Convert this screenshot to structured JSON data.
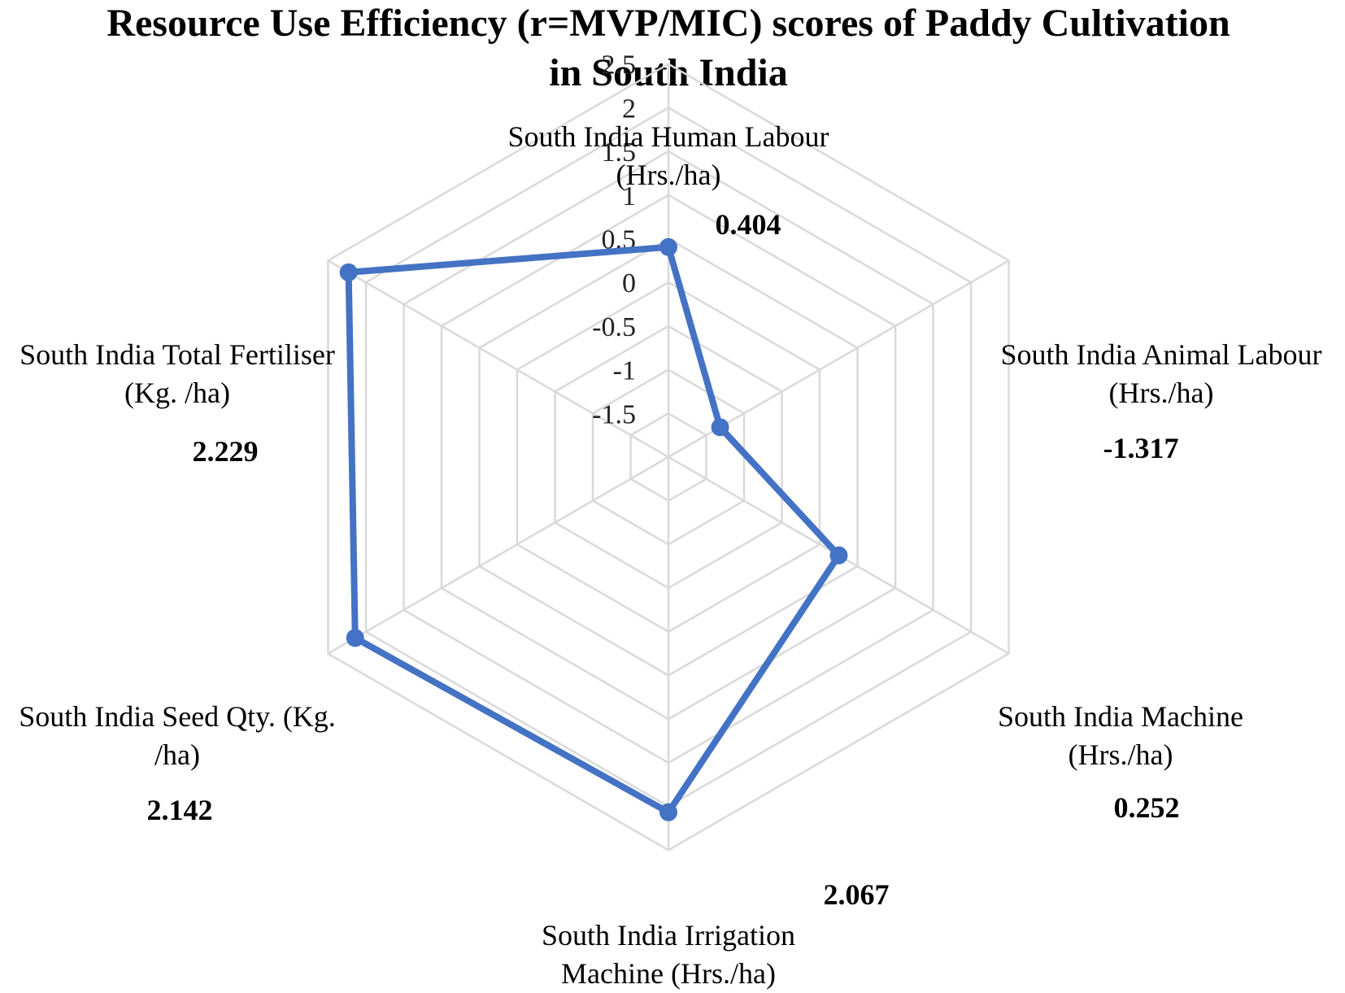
{
  "chart_data": {
    "type": "radar",
    "title_lines": [
      "Resource Use Efficiency (r=MVP/MIC) scores of Paddy Cultivation",
      "in South India"
    ],
    "categories": [
      "South India Human Labour (Hrs./ha)",
      "South India Animal Labour (Hrs./ha)",
      "South India Machine (Hrs./ha)",
      "South India Irrigation Machine (Hrs./ha)",
      "South India Seed Qty. (Kg. /ha)",
      "South India Total Fertiliser (Kg. /ha)"
    ],
    "category_label_lines": [
      [
        "South India Human Labour",
        "(Hrs./ha)"
      ],
      [
        "South India Animal Labour",
        "(Hrs./ha)"
      ],
      [
        "South India Machine",
        "(Hrs./ha)"
      ],
      [
        "South India Irrigation",
        "Machine (Hrs./ha)"
      ],
      [
        "South India Seed Qty. (Kg.",
        "/ha)"
      ],
      [
        "South India Total Fertiliser",
        "(Kg. /ha)"
      ]
    ],
    "series": [
      {
        "values": [
          0.404,
          -1.317,
          0.252,
          2.067,
          2.142,
          2.229
        ],
        "color": "#4472C4"
      }
    ],
    "data_labels": [
      "0.404",
      "-1.317",
      "0.252",
      "2.067",
      "2.142",
      "2.229"
    ],
    "radial_axis": {
      "min": -2,
      "max": 2.5,
      "ticks": [
        -1.5,
        -1,
        -0.5,
        0,
        0.5,
        1,
        1.5,
        2,
        2.5
      ],
      "tick_labels": [
        "-1.5",
        "-1",
        "-0.5",
        "0",
        "0.5",
        "1",
        "1.5",
        "2",
        "2.5"
      ]
    },
    "grid": true,
    "grid_color": "#d9d9d9",
    "legend": "none"
  }
}
